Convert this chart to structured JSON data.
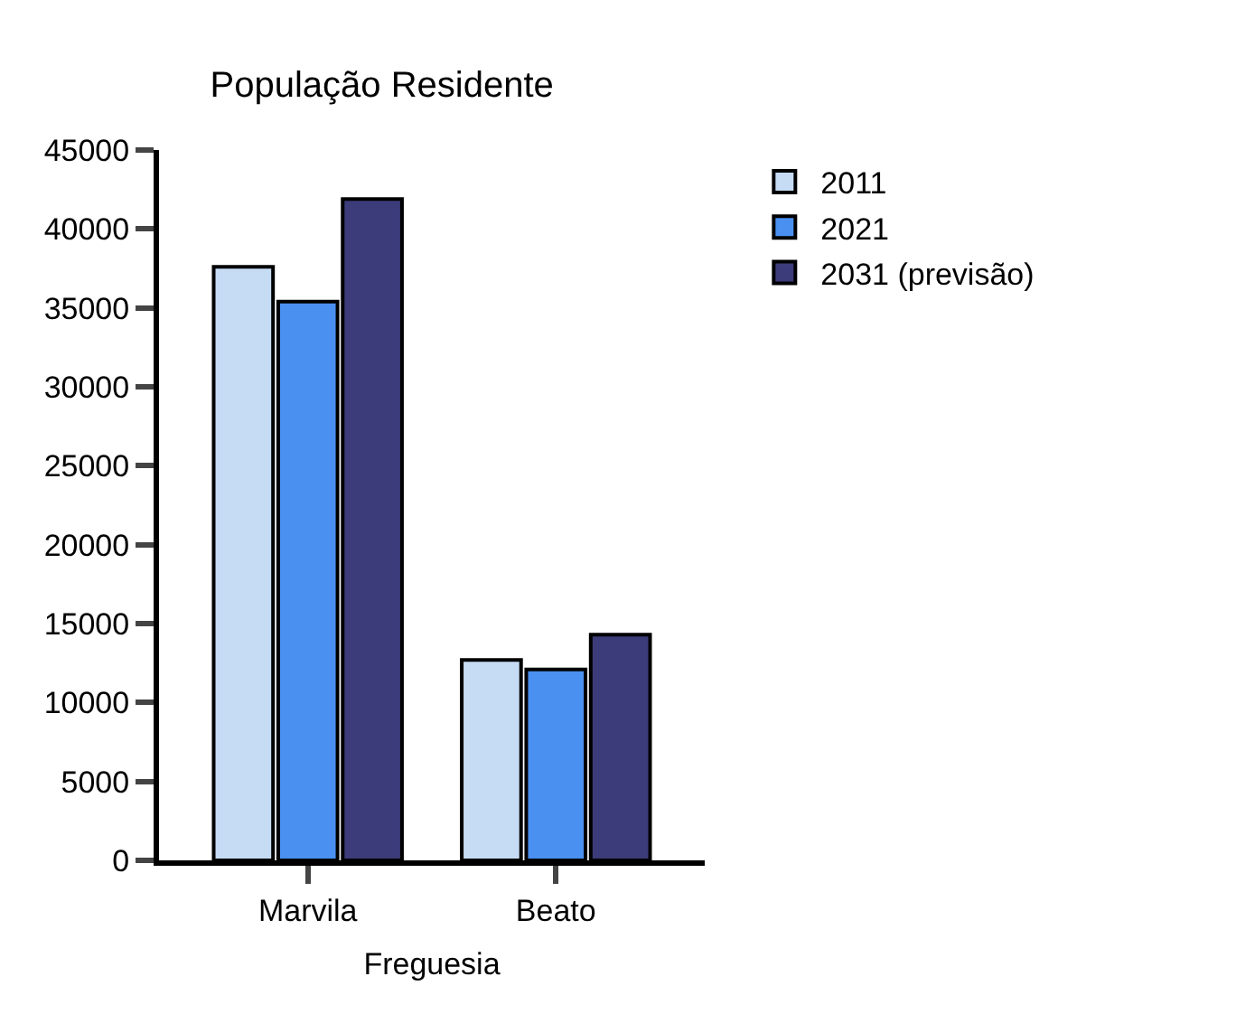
{
  "chart_data": {
    "type": "bar",
    "title": "População Residente",
    "xlabel": "Freguesia",
    "categories": [
      "Marvila",
      "Beato"
    ],
    "series": [
      {
        "name": "2011",
        "color": "#c6dcf5",
        "values": [
          37600,
          12700
        ]
      },
      {
        "name": "2021",
        "color": "#4a90f0",
        "values": [
          35400,
          12100
        ]
      },
      {
        "name": "2031 (previsão)",
        "color": "#3c3c7a",
        "values": [
          41900,
          14300
        ]
      }
    ],
    "ylim": [
      0,
      45000
    ],
    "yticks": [
      0,
      5000,
      10000,
      15000,
      20000,
      25000,
      30000,
      35000,
      40000,
      45000
    ],
    "legend": "top right"
  }
}
